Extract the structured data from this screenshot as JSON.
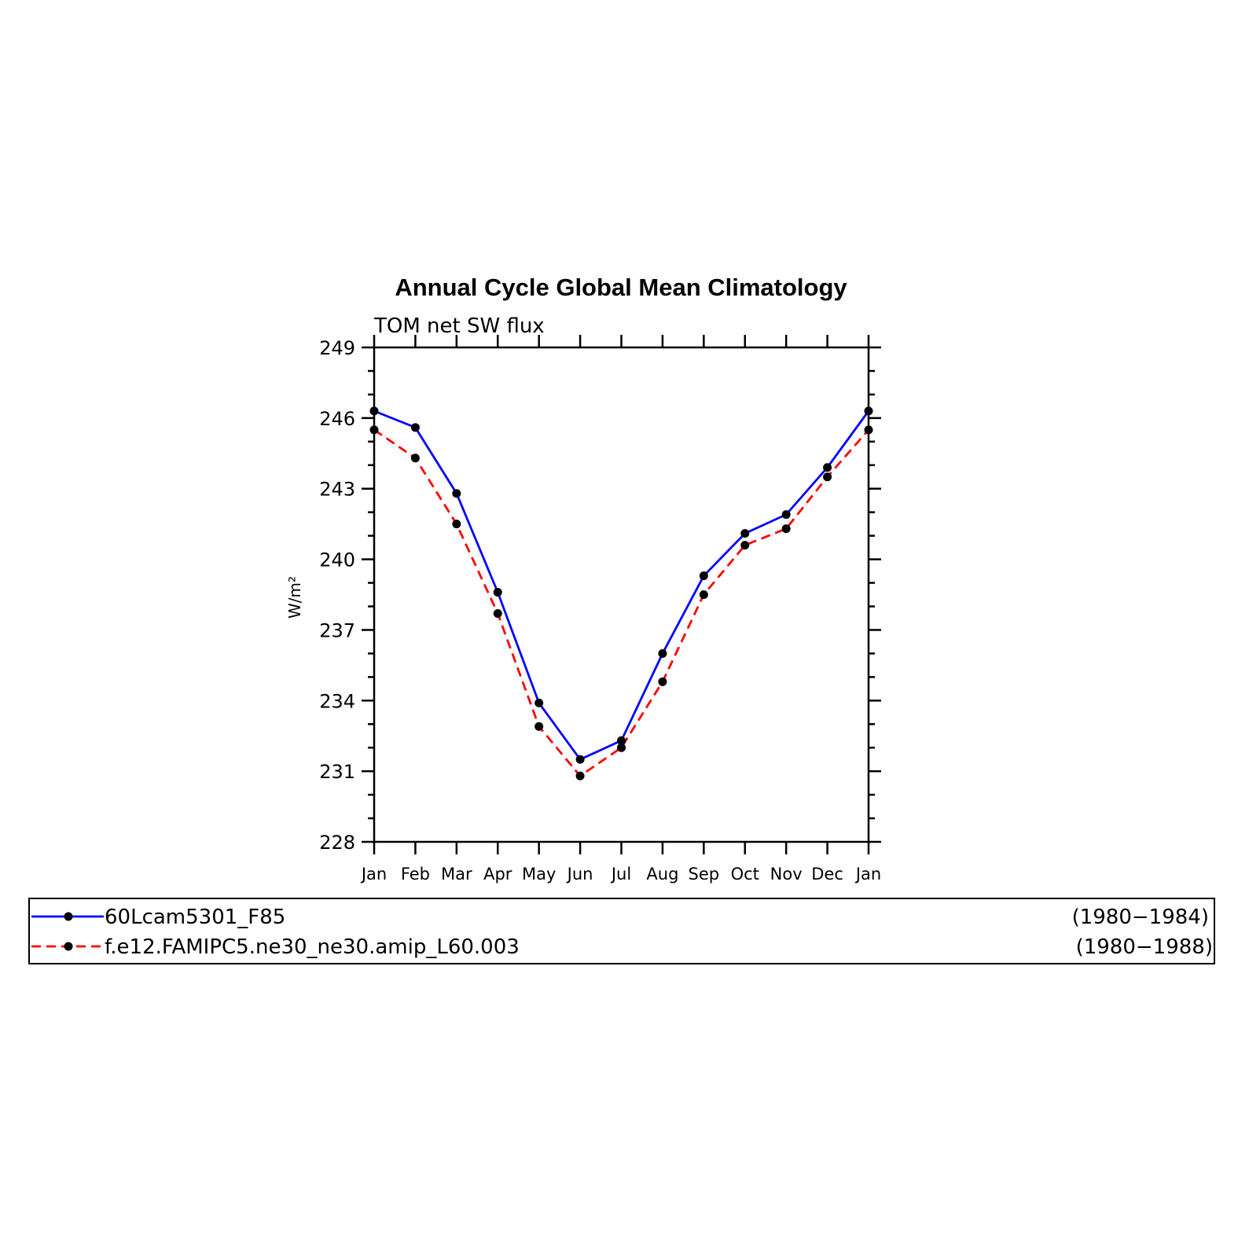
{
  "chart_data": {
    "type": "line",
    "title": "Annual Cycle Global Mean Climatology",
    "subtitle": "TOM net SW flux",
    "ylabel": "W/m²",
    "ylim": [
      228,
      249
    ],
    "yticks": [
      "228",
      "231",
      "234",
      "237",
      "240",
      "243",
      "246",
      "249"
    ],
    "categories": [
      "Jan",
      "Feb",
      "Mar",
      "Apr",
      "May",
      "Jun",
      "Jul",
      "Aug",
      "Sep",
      "Oct",
      "Nov",
      "Dec",
      "Jan"
    ],
    "grid": false,
    "legend_position": "bottom",
    "series": [
      {
        "name": "60Lcam5301_F85",
        "period": "(1980−1984)",
        "color": "#0000ff",
        "style": "solid",
        "values": [
          246.3,
          245.6,
          242.8,
          238.6,
          233.9,
          231.5,
          232.3,
          236.0,
          239.3,
          241.1,
          241.9,
          243.9,
          246.3
        ]
      },
      {
        "name": "f.e12.FAMIPC5.ne30_ne30.amip_L60.003",
        "period": "(1980−1988)",
        "color": "#ff0000",
        "style": "dashed",
        "values": [
          245.5,
          244.3,
          241.5,
          237.7,
          232.9,
          230.8,
          232.0,
          234.8,
          238.5,
          240.6,
          241.3,
          243.5,
          245.5
        ]
      }
    ]
  }
}
